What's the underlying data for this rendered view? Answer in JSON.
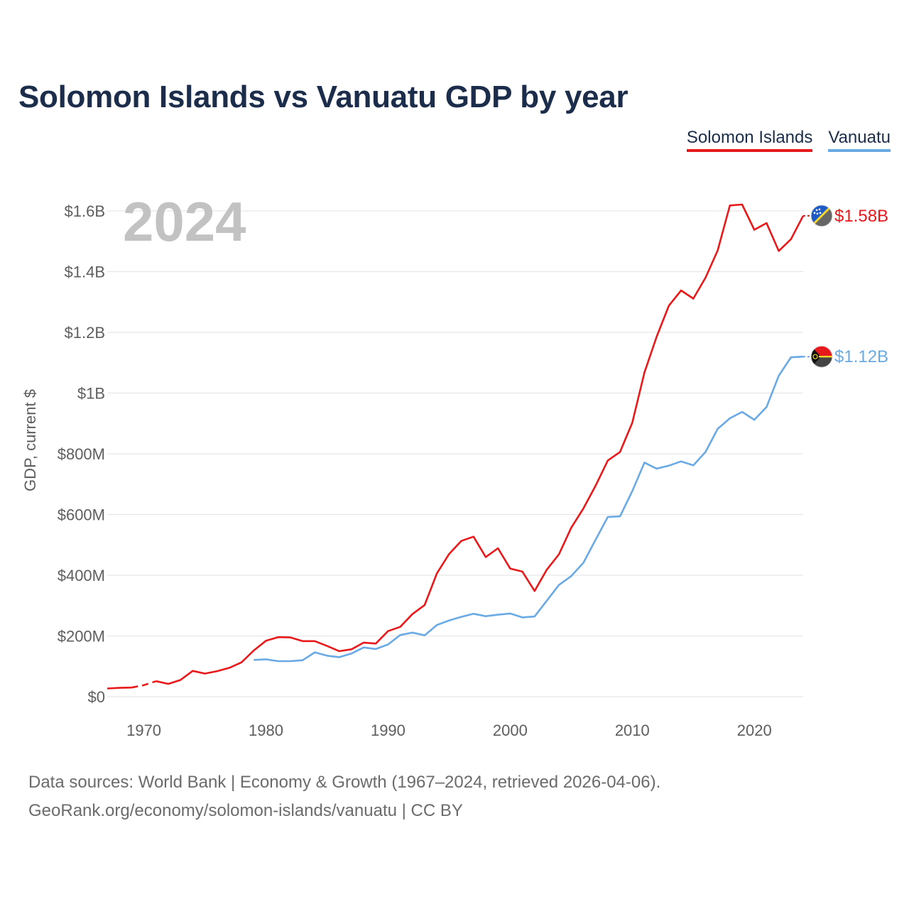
{
  "chart_data": {
    "type": "line",
    "title": "Solomon Islands vs Vanuatu GDP by year",
    "ylabel": "GDP, current $",
    "xlabel": "",
    "year_label": "2024",
    "xlim": [
      1967,
      2024
    ],
    "ylim": [
      0,
      1600000000
    ],
    "x_ticks": [
      1970,
      1980,
      1990,
      2000,
      2010,
      2020
    ],
    "y_ticks": [
      {
        "value": 0,
        "label": "$0"
      },
      {
        "value": 200000000,
        "label": "$200M"
      },
      {
        "value": 400000000,
        "label": "$400M"
      },
      {
        "value": 600000000,
        "label": "$600M"
      },
      {
        "value": 800000000,
        "label": "$800M"
      },
      {
        "value": 1000000000,
        "label": "$1B"
      },
      {
        "value": 1200000000,
        "label": "$1.2B"
      },
      {
        "value": 1400000000,
        "label": "$1.4B"
      },
      {
        "value": 1600000000,
        "label": "$1.6B"
      }
    ],
    "grid": true,
    "legend_position": "top-right",
    "series": [
      {
        "name": "Solomon Islands",
        "color": "#e8191a",
        "end_label": "$1.58B",
        "gap_after_year": 1969,
        "points": [
          [
            1967,
            27000000
          ],
          [
            1968,
            29000000
          ],
          [
            1969,
            30000000
          ],
          [
            1970,
            38000000
          ],
          [
            1971,
            51000000
          ],
          [
            1972,
            42000000
          ],
          [
            1973,
            55000000
          ],
          [
            1974,
            85000000
          ],
          [
            1975,
            76000000
          ],
          [
            1976,
            84000000
          ],
          [
            1977,
            95000000
          ],
          [
            1978,
            113000000
          ],
          [
            1979,
            152000000
          ],
          [
            1980,
            184000000
          ],
          [
            1981,
            196000000
          ],
          [
            1982,
            195000000
          ],
          [
            1983,
            183000000
          ],
          [
            1984,
            183000000
          ],
          [
            1985,
            167000000
          ],
          [
            1986,
            150000000
          ],
          [
            1987,
            156000000
          ],
          [
            1988,
            178000000
          ],
          [
            1989,
            175000000
          ],
          [
            1990,
            216000000
          ],
          [
            1991,
            230000000
          ],
          [
            1992,
            272000000
          ],
          [
            1993,
            302000000
          ],
          [
            1994,
            406000000
          ],
          [
            1995,
            470000000
          ],
          [
            1996,
            513000000
          ],
          [
            1997,
            527000000
          ],
          [
            1998,
            460000000
          ],
          [
            1999,
            489000000
          ],
          [
            2000,
            422000000
          ],
          [
            2001,
            412000000
          ],
          [
            2002,
            348000000
          ],
          [
            2003,
            418000000
          ],
          [
            2004,
            469000000
          ],
          [
            2005,
            556000000
          ],
          [
            2006,
            620000000
          ],
          [
            2007,
            695000000
          ],
          [
            2008,
            778000000
          ],
          [
            2009,
            806000000
          ],
          [
            2010,
            902000000
          ],
          [
            2011,
            1068000000
          ],
          [
            2012,
            1186000000
          ],
          [
            2013,
            1288000000
          ],
          [
            2014,
            1338000000
          ],
          [
            2015,
            1311000000
          ],
          [
            2016,
            1380000000
          ],
          [
            2017,
            1470000000
          ],
          [
            2018,
            1618000000
          ],
          [
            2019,
            1621000000
          ],
          [
            2020,
            1538000000
          ],
          [
            2021,
            1560000000
          ],
          [
            2022,
            1468000000
          ],
          [
            2023,
            1507000000
          ],
          [
            2024,
            1584000000
          ]
        ]
      },
      {
        "name": "Vanuatu",
        "color": "#6aaae4",
        "end_label": "$1.12B",
        "points": [
          [
            1979,
            121000000
          ],
          [
            1980,
            123000000
          ],
          [
            1981,
            117000000
          ],
          [
            1982,
            117000000
          ],
          [
            1983,
            120000000
          ],
          [
            1984,
            146000000
          ],
          [
            1985,
            135000000
          ],
          [
            1986,
            130000000
          ],
          [
            1987,
            142000000
          ],
          [
            1988,
            162000000
          ],
          [
            1989,
            157000000
          ],
          [
            1990,
            172000000
          ],
          [
            1991,
            203000000
          ],
          [
            1992,
            211000000
          ],
          [
            1993,
            202000000
          ],
          [
            1994,
            236000000
          ],
          [
            1995,
            251000000
          ],
          [
            1996,
            263000000
          ],
          [
            1997,
            273000000
          ],
          [
            1998,
            265000000
          ],
          [
            1999,
            270000000
          ],
          [
            2000,
            274000000
          ],
          [
            2001,
            261000000
          ],
          [
            2002,
            264000000
          ],
          [
            2003,
            316000000
          ],
          [
            2004,
            368000000
          ],
          [
            2005,
            397000000
          ],
          [
            2006,
            441000000
          ],
          [
            2007,
            517000000
          ],
          [
            2008,
            592000000
          ],
          [
            2009,
            594000000
          ],
          [
            2010,
            677000000
          ],
          [
            2011,
            771000000
          ],
          [
            2012,
            751000000
          ],
          [
            2013,
            761000000
          ],
          [
            2014,
            775000000
          ],
          [
            2015,
            762000000
          ],
          [
            2016,
            806000000
          ],
          [
            2017,
            882000000
          ],
          [
            2018,
            917000000
          ],
          [
            2019,
            938000000
          ],
          [
            2020,
            912000000
          ],
          [
            2021,
            954000000
          ],
          [
            2022,
            1057000000
          ],
          [
            2023,
            1118000000
          ],
          [
            2024,
            1120000000
          ]
        ]
      }
    ]
  },
  "legend": {
    "items": [
      "Solomon Islands",
      "Vanuatu"
    ]
  },
  "footer": {
    "line1": "Data sources: World Bank | Economy & Growth (1967–2024, retrieved 2026-04-06).",
    "line2": "GeoRank.org/economy/solomon-islands/vanuatu | CC BY"
  }
}
